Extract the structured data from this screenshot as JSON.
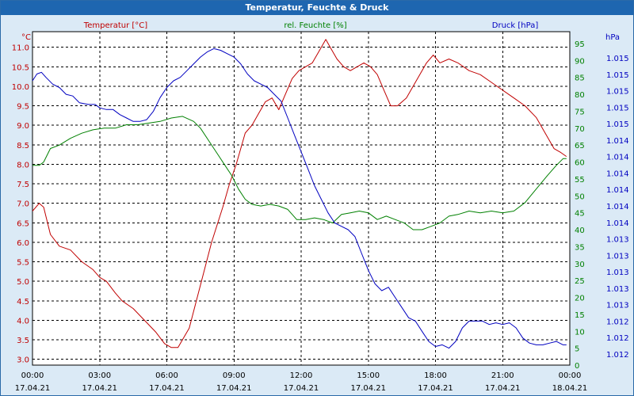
{
  "window": {
    "title": "Temperatur, Feuchte & Druck"
  },
  "colors": {
    "temperature": "#c00000",
    "humidity": "#008000",
    "pressure": "#0000c0",
    "background": "#ffffff",
    "frame_bg": "#dbeaf6",
    "titlebar": "#1e66b0"
  },
  "chart_data": {
    "type": "line",
    "grid": true,
    "x_tick_times": [
      "00:00",
      "03:00",
      "06:00",
      "09:00",
      "12:00",
      "15:00",
      "18:00",
      "21:00",
      "00:00"
    ],
    "x_tick_dates": [
      "17.04.21",
      "17.04.21",
      "17.04.21",
      "17.04.21",
      "17.04.21",
      "17.04.21",
      "17.04.21",
      "17.04.21",
      "18.04.21"
    ],
    "x_range_hours": [
      0,
      24
    ],
    "axes": {
      "left": {
        "unit": "°C",
        "title": "Temperatur [°C]",
        "range": [
          2.85,
          11.4
        ],
        "ticks": [
          "3.0",
          "3.5",
          "4.0",
          "4.5",
          "5.0",
          "5.5",
          "6.0",
          "6.5",
          "7.0",
          "7.5",
          "8.0",
          "8.5",
          "9.0",
          "9.5",
          "10.0",
          "10.5",
          "11.0"
        ]
      },
      "middle": {
        "unit": "%",
        "title": "rel. Feuchte [%]",
        "range": [
          0,
          98.5
        ],
        "ticks": [
          "0",
          "5",
          "10",
          "15",
          "20",
          "25",
          "30",
          "35",
          "40",
          "45",
          "50",
          "55",
          "60",
          "65",
          "70",
          "75",
          "80",
          "85",
          "90",
          "95"
        ]
      },
      "right": {
        "unit": "hPa",
        "title": "Druck [hPa]",
        "ticks": [
          "1.012",
          "1.012",
          "1.012",
          "1.013",
          "1.013",
          "1.013",
          "1.013",
          "1.013",
          "1.014",
          "1.014",
          "1.014",
          "1.014",
          "1.014",
          "1.014",
          "1.015",
          "1.015",
          "1.015",
          "1.015",
          "1.015"
        ]
      }
    },
    "series": [
      {
        "name": "Temperatur [°C]",
        "axis": "left",
        "points": [
          [
            0,
            6.8
          ],
          [
            0.3,
            7.0
          ],
          [
            0.5,
            6.9
          ],
          [
            0.8,
            6.2
          ],
          [
            1.2,
            5.9
          ],
          [
            1.7,
            5.8
          ],
          [
            2.2,
            5.5
          ],
          [
            2.7,
            5.3
          ],
          [
            3.0,
            5.1
          ],
          [
            3.3,
            5.0
          ],
          [
            3.7,
            4.7
          ],
          [
            4.0,
            4.5
          ],
          [
            4.5,
            4.3
          ],
          [
            5.0,
            4.0
          ],
          [
            5.5,
            3.7
          ],
          [
            5.9,
            3.4
          ],
          [
            6.2,
            3.3
          ],
          [
            6.5,
            3.3
          ],
          [
            7.0,
            3.8
          ],
          [
            7.5,
            4.9
          ],
          [
            8.0,
            6.0
          ],
          [
            8.5,
            6.9
          ],
          [
            8.8,
            7.5
          ],
          [
            9.1,
            8.0
          ],
          [
            9.5,
            8.8
          ],
          [
            9.8,
            9.0
          ],
          [
            10.1,
            9.3
          ],
          [
            10.4,
            9.6
          ],
          [
            10.7,
            9.7
          ],
          [
            11.0,
            9.4
          ],
          [
            11.3,
            9.8
          ],
          [
            11.6,
            10.2
          ],
          [
            11.9,
            10.4
          ],
          [
            12.2,
            10.5
          ],
          [
            12.5,
            10.6
          ],
          [
            12.8,
            10.9
          ],
          [
            13.1,
            11.2
          ],
          [
            13.3,
            11.0
          ],
          [
            13.6,
            10.7
          ],
          [
            13.9,
            10.5
          ],
          [
            14.2,
            10.4
          ],
          [
            14.5,
            10.5
          ],
          [
            14.8,
            10.6
          ],
          [
            15.1,
            10.5
          ],
          [
            15.4,
            10.3
          ],
          [
            15.7,
            9.9
          ],
          [
            16.0,
            9.5
          ],
          [
            16.3,
            9.5
          ],
          [
            16.7,
            9.7
          ],
          [
            17.0,
            10.0
          ],
          [
            17.3,
            10.3
          ],
          [
            17.6,
            10.6
          ],
          [
            17.9,
            10.8
          ],
          [
            18.2,
            10.6
          ],
          [
            18.6,
            10.7
          ],
          [
            19.0,
            10.6
          ],
          [
            19.5,
            10.4
          ],
          [
            20.0,
            10.3
          ],
          [
            20.5,
            10.1
          ],
          [
            21.0,
            9.9
          ],
          [
            21.5,
            9.7
          ],
          [
            22.0,
            9.5
          ],
          [
            22.5,
            9.2
          ],
          [
            22.9,
            8.8
          ],
          [
            23.3,
            8.4
          ],
          [
            23.6,
            8.3
          ],
          [
            23.85,
            8.2
          ]
        ]
      },
      {
        "name": "rel. Feuchte [%]",
        "axis": "middle",
        "points": [
          [
            0,
            59
          ],
          [
            0.3,
            59
          ],
          [
            0.5,
            60
          ],
          [
            0.8,
            64
          ],
          [
            1.2,
            65
          ],
          [
            1.7,
            67
          ],
          [
            2.2,
            68.5
          ],
          [
            2.7,
            69.5
          ],
          [
            3.2,
            70
          ],
          [
            3.7,
            70
          ],
          [
            4.2,
            71
          ],
          [
            4.7,
            71
          ],
          [
            5.2,
            71.5
          ],
          [
            5.7,
            72
          ],
          [
            6.2,
            73
          ],
          [
            6.7,
            73.5
          ],
          [
            7.2,
            72
          ],
          [
            7.5,
            70
          ],
          [
            7.9,
            66
          ],
          [
            8.3,
            62
          ],
          [
            8.6,
            59
          ],
          [
            8.9,
            56
          ],
          [
            9.2,
            52
          ],
          [
            9.5,
            49
          ],
          [
            9.8,
            47.5
          ],
          [
            10.2,
            47
          ],
          [
            10.6,
            47.5
          ],
          [
            11.0,
            47
          ],
          [
            11.4,
            46
          ],
          [
            11.8,
            43
          ],
          [
            12.2,
            43
          ],
          [
            12.6,
            43.5
          ],
          [
            13.0,
            43
          ],
          [
            13.4,
            42
          ],
          [
            13.8,
            44.5
          ],
          [
            14.2,
            45
          ],
          [
            14.6,
            45.5
          ],
          [
            15.0,
            45
          ],
          [
            15.4,
            43
          ],
          [
            15.8,
            44
          ],
          [
            16.2,
            43
          ],
          [
            16.6,
            42
          ],
          [
            17.0,
            40
          ],
          [
            17.4,
            40
          ],
          [
            17.8,
            41
          ],
          [
            18.2,
            42
          ],
          [
            18.6,
            44
          ],
          [
            19.0,
            44.5
          ],
          [
            19.5,
            45.5
          ],
          [
            20.0,
            45
          ],
          [
            20.5,
            45.5
          ],
          [
            21.0,
            45
          ],
          [
            21.5,
            45.5
          ],
          [
            22.0,
            48
          ],
          [
            22.5,
            52
          ],
          [
            23.0,
            56
          ],
          [
            23.4,
            59
          ],
          [
            23.7,
            61
          ],
          [
            23.85,
            61
          ]
        ]
      },
      {
        "name": "Druck [hPa]",
        "axis": "right",
        "points": [
          [
            0,
            84
          ],
          [
            0.2,
            86
          ],
          [
            0.4,
            86.5
          ],
          [
            0.6,
            85
          ],
          [
            0.9,
            83
          ],
          [
            1.2,
            82
          ],
          [
            1.5,
            80
          ],
          [
            1.8,
            79.5
          ],
          [
            2.1,
            77.5
          ],
          [
            2.5,
            77
          ],
          [
            2.8,
            77
          ],
          [
            3.0,
            76
          ],
          [
            3.3,
            75.5
          ],
          [
            3.6,
            75.5
          ],
          [
            3.9,
            74
          ],
          [
            4.2,
            73
          ],
          [
            4.5,
            72
          ],
          [
            4.8,
            72
          ],
          [
            5.1,
            72.5
          ],
          [
            5.4,
            75
          ],
          [
            5.7,
            79
          ],
          [
            6.0,
            82
          ],
          [
            6.3,
            84
          ],
          [
            6.6,
            85
          ],
          [
            6.9,
            87
          ],
          [
            7.2,
            89
          ],
          [
            7.5,
            91
          ],
          [
            7.8,
            92.5
          ],
          [
            8.1,
            93.5
          ],
          [
            8.4,
            93
          ],
          [
            8.7,
            92
          ],
          [
            9.0,
            91
          ],
          [
            9.3,
            89
          ],
          [
            9.6,
            86
          ],
          [
            9.9,
            84
          ],
          [
            10.2,
            83
          ],
          [
            10.5,
            82
          ],
          [
            10.8,
            80
          ],
          [
            11.1,
            78
          ],
          [
            11.4,
            73
          ],
          [
            11.7,
            68
          ],
          [
            12.0,
            63
          ],
          [
            12.3,
            58
          ],
          [
            12.6,
            53
          ],
          [
            12.9,
            49
          ],
          [
            13.2,
            45
          ],
          [
            13.5,
            42
          ],
          [
            13.8,
            41
          ],
          [
            14.1,
            40
          ],
          [
            14.4,
            38
          ],
          [
            14.7,
            33
          ],
          [
            15.0,
            28
          ],
          [
            15.3,
            24
          ],
          [
            15.6,
            22
          ],
          [
            15.9,
            23
          ],
          [
            16.2,
            20
          ],
          [
            16.5,
            17
          ],
          [
            16.8,
            14
          ],
          [
            17.1,
            13
          ],
          [
            17.4,
            10
          ],
          [
            17.7,
            7
          ],
          [
            18.0,
            5.5
          ],
          [
            18.3,
            6
          ],
          [
            18.6,
            5
          ],
          [
            18.9,
            7
          ],
          [
            19.2,
            11
          ],
          [
            19.5,
            13
          ],
          [
            19.8,
            13
          ],
          [
            20.1,
            13
          ],
          [
            20.4,
            12
          ],
          [
            20.7,
            12.5
          ],
          [
            21.0,
            12
          ],
          [
            21.3,
            12.5
          ],
          [
            21.6,
            11
          ],
          [
            21.9,
            8
          ],
          [
            22.2,
            6.5
          ],
          [
            22.5,
            6
          ],
          [
            22.8,
            6
          ],
          [
            23.1,
            6.5
          ],
          [
            23.4,
            7
          ],
          [
            23.7,
            6
          ],
          [
            23.85,
            6
          ]
        ]
      }
    ]
  }
}
